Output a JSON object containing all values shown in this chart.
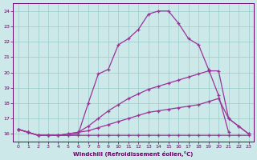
{
  "background_color": "#cce8e8",
  "line_color": "#993399",
  "grid_color": "#99cccc",
  "xlabel": "Windchill (Refroidissement éolien,°C)",
  "xlabel_color": "#660066",
  "tick_color": "#660066",
  "xlim": [
    -0.5,
    23.5
  ],
  "ylim": [
    15.5,
    24.5
  ],
  "yticks": [
    16,
    17,
    18,
    19,
    20,
    21,
    22,
    23,
    24
  ],
  "xticks": [
    0,
    1,
    2,
    3,
    4,
    5,
    6,
    7,
    8,
    9,
    10,
    11,
    12,
    13,
    14,
    15,
    16,
    17,
    18,
    19,
    20,
    21,
    22,
    23
  ],
  "lines": [
    {
      "x": [
        0,
        1,
        2,
        3,
        4,
        5,
        6,
        7,
        8,
        9,
        10,
        11,
        12,
        13,
        14,
        15,
        16,
        17,
        18,
        19,
        20,
        21
      ],
      "y": [
        16.3,
        16.1,
        15.9,
        15.9,
        15.9,
        15.9,
        16.0,
        18.0,
        19.9,
        20.2,
        21.8,
        22.2,
        22.8,
        23.8,
        24.0,
        24.0,
        23.2,
        22.2,
        21.8,
        20.2,
        18.5,
        16.1
      ]
    },
    {
      "x": [
        0,
        1,
        2,
        3,
        4,
        5,
        6,
        7,
        8,
        9,
        10,
        11,
        12,
        13,
        14,
        15,
        16,
        17,
        18,
        19,
        20,
        21,
        22,
        23
      ],
      "y": [
        16.3,
        16.1,
        15.9,
        15.9,
        15.9,
        16.0,
        16.1,
        16.5,
        17.0,
        17.5,
        17.9,
        18.3,
        18.6,
        18.9,
        19.1,
        19.3,
        19.5,
        19.7,
        19.9,
        20.1,
        20.1,
        17.0,
        16.5,
        16.0
      ]
    },
    {
      "x": [
        0,
        1,
        2,
        3,
        4,
        5,
        6,
        7,
        8,
        9,
        10,
        11,
        12,
        13,
        14,
        15,
        16,
        17,
        18,
        19,
        20,
        21,
        22,
        23
      ],
      "y": [
        16.3,
        16.1,
        15.9,
        15.9,
        15.9,
        16.0,
        16.1,
        16.2,
        16.4,
        16.6,
        16.8,
        17.0,
        17.2,
        17.4,
        17.5,
        17.6,
        17.7,
        17.8,
        17.9,
        18.1,
        18.3,
        17.0,
        16.5,
        16.0
      ]
    },
    {
      "x": [
        0,
        1,
        2,
        3,
        4,
        5,
        6,
        7,
        8,
        9,
        10,
        11,
        12,
        13,
        14,
        15,
        16,
        17,
        18,
        19,
        20,
        21,
        22,
        23
      ],
      "y": [
        16.3,
        16.1,
        15.9,
        15.9,
        15.9,
        15.9,
        15.9,
        15.9,
        15.9,
        15.9,
        15.9,
        15.9,
        15.9,
        15.9,
        15.9,
        15.9,
        15.9,
        15.9,
        15.9,
        15.9,
        15.9,
        15.9,
        15.9,
        15.9
      ]
    }
  ]
}
